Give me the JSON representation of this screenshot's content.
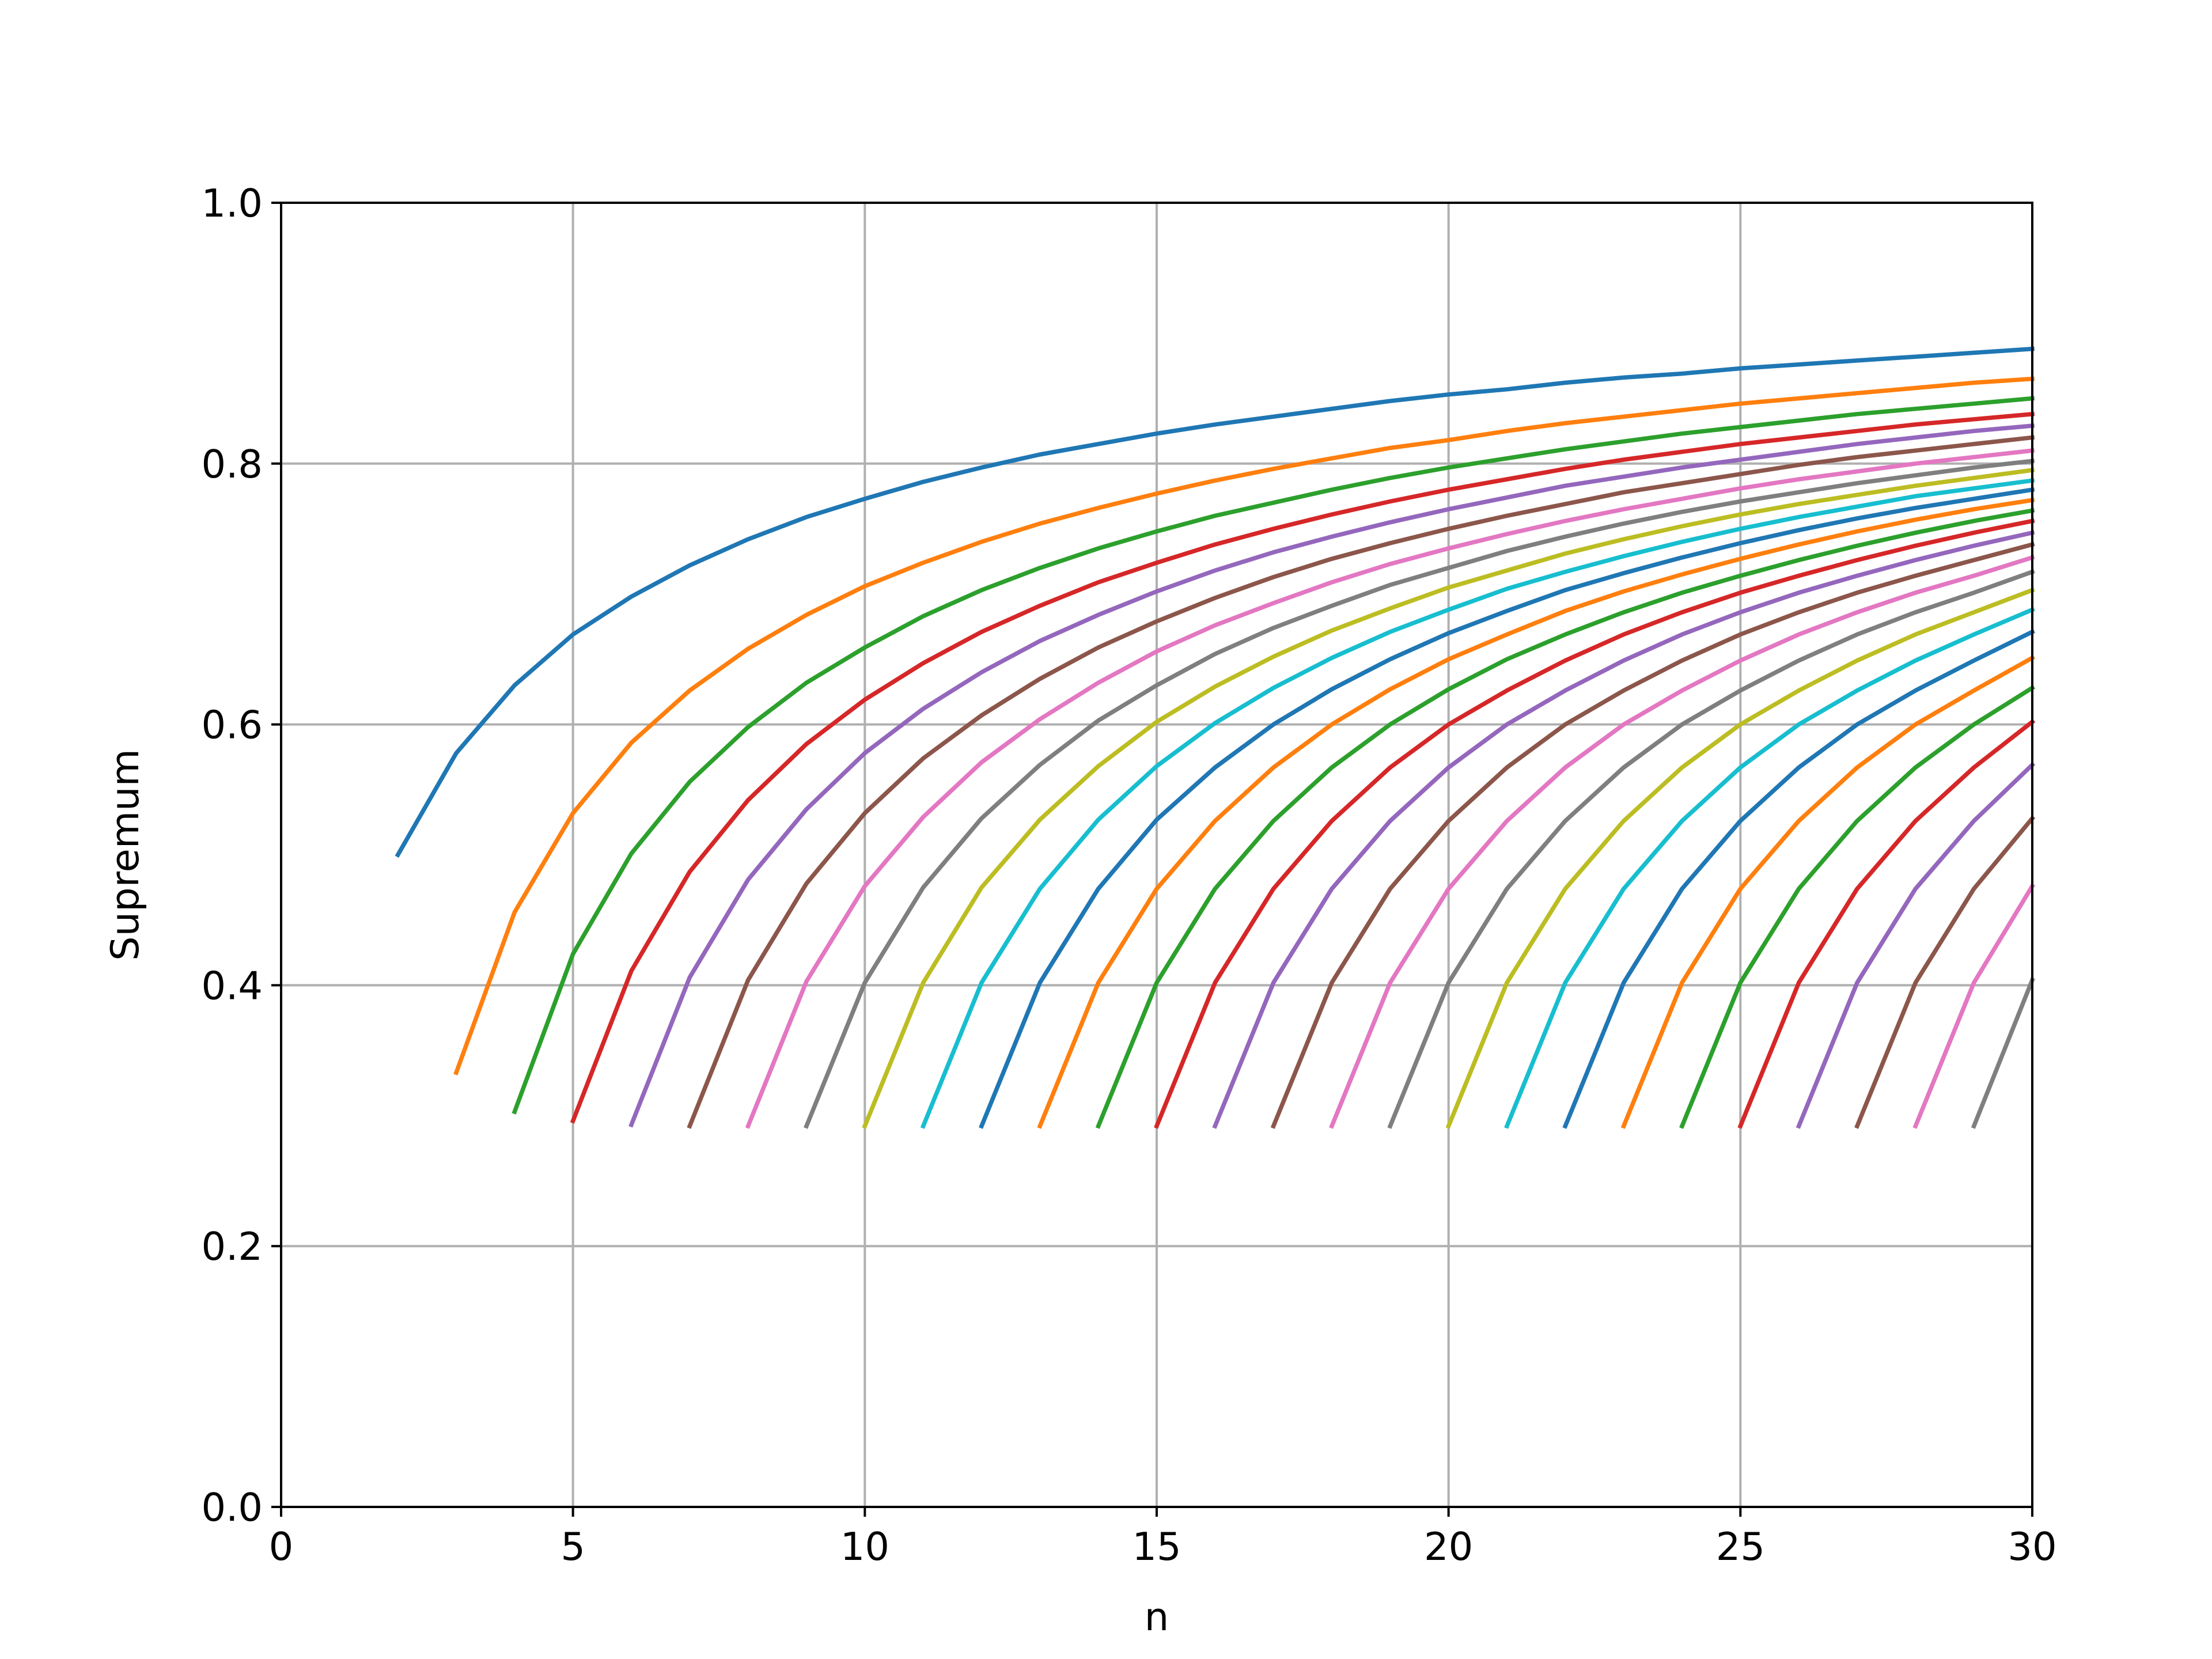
{
  "chart_data": {
    "type": "line",
    "xlabel": "n",
    "ylabel": "Supremum",
    "xlim": [
      0,
      30
    ],
    "ylim": [
      0,
      1
    ],
    "grid": true,
    "x_ticks": [
      0,
      5,
      10,
      15,
      20,
      25,
      30
    ],
    "x_tick_labels": [
      "0",
      "5",
      "10",
      "15",
      "20",
      "25",
      "30"
    ],
    "y_ticks": [
      0,
      0.2,
      0.4,
      0.6,
      0.8,
      1.0
    ],
    "y_tick_labels": [
      "0.0",
      "0.2",
      "0.4",
      "0.6",
      "0.8",
      "1.0"
    ],
    "colors": [
      "#1f77b4",
      "#ff7f0e",
      "#2ca02c",
      "#d62728",
      "#9467bd",
      "#8c564b",
      "#e377c2",
      "#7f7f7f",
      "#bcbd22",
      "#17becf"
    ],
    "series": [
      {
        "x": [
          2,
          3,
          4,
          5,
          6,
          7,
          8,
          9,
          10,
          11,
          12,
          13,
          14,
          15,
          16,
          17,
          18,
          19,
          20,
          21,
          22,
          23,
          24,
          25,
          26,
          27,
          28,
          29,
          30
        ],
        "values": [
          0.5,
          0.578,
          0.63,
          0.669,
          0.698,
          0.722,
          0.742,
          0.759,
          0.773,
          0.786,
          0.797,
          0.807,
          0.815,
          0.823,
          0.83,
          0.836,
          0.842,
          0.848,
          0.853,
          0.857,
          0.862,
          0.866,
          0.869,
          0.873,
          0.876,
          0.879,
          0.882,
          0.885,
          0.888
        ]
      },
      {
        "x": [
          3,
          4,
          5,
          6,
          7,
          8,
          9,
          10,
          11,
          12,
          13,
          14,
          15,
          16,
          17,
          18,
          19,
          20,
          21,
          22,
          23,
          24,
          25,
          26,
          27,
          28,
          29,
          30
        ],
        "values": [
          0.333,
          0.456,
          0.532,
          0.586,
          0.626,
          0.658,
          0.684,
          0.706,
          0.724,
          0.74,
          0.754,
          0.766,
          0.777,
          0.787,
          0.796,
          0.804,
          0.812,
          0.818,
          0.825,
          0.831,
          0.836,
          0.841,
          0.846,
          0.85,
          0.854,
          0.858,
          0.862,
          0.865
        ]
      },
      {
        "x": [
          4,
          5,
          6,
          7,
          8,
          9,
          10,
          11,
          12,
          13,
          14,
          15,
          16,
          17,
          18,
          19,
          20,
          21,
          22,
          23,
          24,
          25,
          26,
          27,
          28,
          29,
          30
        ],
        "values": [
          0.303,
          0.424,
          0.501,
          0.556,
          0.598,
          0.632,
          0.659,
          0.683,
          0.703,
          0.72,
          0.735,
          0.748,
          0.76,
          0.77,
          0.78,
          0.789,
          0.797,
          0.804,
          0.811,
          0.817,
          0.823,
          0.828,
          0.833,
          0.838,
          0.842,
          0.846,
          0.85
        ]
      },
      {
        "x": [
          5,
          6,
          7,
          8,
          9,
          10,
          11,
          12,
          13,
          14,
          15,
          16,
          17,
          18,
          19,
          20,
          21,
          22,
          23,
          24,
          25,
          26,
          27,
          28,
          29,
          30
        ],
        "values": [
          0.296,
          0.411,
          0.487,
          0.542,
          0.585,
          0.619,
          0.647,
          0.671,
          0.691,
          0.709,
          0.724,
          0.738,
          0.75,
          0.761,
          0.771,
          0.78,
          0.788,
          0.796,
          0.803,
          0.809,
          0.815,
          0.82,
          0.825,
          0.83,
          0.834,
          0.838
        ]
      },
      {
        "x": [
          6,
          7,
          8,
          9,
          10,
          11,
          12,
          13,
          14,
          15,
          16,
          17,
          18,
          19,
          20,
          21,
          22,
          23,
          24,
          25,
          26,
          27,
          28,
          29,
          30
        ],
        "values": [
          0.293,
          0.406,
          0.481,
          0.535,
          0.578,
          0.612,
          0.64,
          0.664,
          0.684,
          0.702,
          0.718,
          0.732,
          0.744,
          0.755,
          0.765,
          0.774,
          0.783,
          0.79,
          0.797,
          0.803,
          0.809,
          0.815,
          0.82,
          0.825,
          0.829
        ]
      },
      {
        "x": [
          7,
          8,
          9,
          10,
          11,
          12,
          13,
          14,
          15,
          16,
          17,
          18,
          19,
          20,
          21,
          22,
          23,
          24,
          25,
          26,
          27,
          28,
          29,
          30
        ],
        "values": [
          0.292,
          0.404,
          0.478,
          0.532,
          0.574,
          0.607,
          0.635,
          0.659,
          0.679,
          0.697,
          0.713,
          0.727,
          0.739,
          0.75,
          0.76,
          0.769,
          0.778,
          0.785,
          0.792,
          0.799,
          0.805,
          0.81,
          0.815,
          0.82
        ]
      },
      {
        "x": [
          8,
          9,
          10,
          11,
          12,
          13,
          14,
          15,
          16,
          17,
          18,
          19,
          20,
          21,
          22,
          23,
          24,
          25,
          26,
          27,
          28,
          29,
          30
        ],
        "values": [
          0.292,
          0.403,
          0.476,
          0.529,
          0.571,
          0.604,
          0.632,
          0.656,
          0.676,
          0.693,
          0.709,
          0.723,
          0.735,
          0.746,
          0.756,
          0.765,
          0.773,
          0.781,
          0.788,
          0.794,
          0.8,
          0.805,
          0.81
        ]
      },
      {
        "x": [
          9,
          10,
          11,
          12,
          13,
          14,
          15,
          16,
          17,
          18,
          19,
          20,
          21,
          22,
          23,
          24,
          25,
          26,
          27,
          28,
          29,
          30
        ],
        "values": [
          0.292,
          0.402,
          0.475,
          0.528,
          0.569,
          0.603,
          0.63,
          0.654,
          0.674,
          0.691,
          0.707,
          0.72,
          0.733,
          0.744,
          0.754,
          0.763,
          0.771,
          0.778,
          0.785,
          0.791,
          0.797,
          0.802
        ]
      },
      {
        "x": [
          10,
          11,
          12,
          13,
          14,
          15,
          16,
          17,
          18,
          19,
          20,
          21,
          22,
          23,
          24,
          25,
          26,
          27,
          28,
          29,
          30
        ],
        "values": [
          0.292,
          0.402,
          0.475,
          0.527,
          0.568,
          0.602,
          0.629,
          0.652,
          0.672,
          0.689,
          0.705,
          0.718,
          0.731,
          0.742,
          0.752,
          0.761,
          0.769,
          0.776,
          0.783,
          0.789,
          0.795
        ]
      },
      {
        "x": [
          11,
          12,
          13,
          14,
          15,
          16,
          17,
          18,
          19,
          20,
          21,
          22,
          23,
          24,
          25,
          26,
          27,
          28,
          29,
          30
        ],
        "values": [
          0.292,
          0.402,
          0.474,
          0.527,
          0.568,
          0.601,
          0.628,
          0.651,
          0.671,
          0.688,
          0.704,
          0.717,
          0.729,
          0.74,
          0.75,
          0.759,
          0.767,
          0.775,
          0.781,
          0.787
        ]
      },
      {
        "x": [
          12,
          13,
          14,
          15,
          16,
          17,
          18,
          19,
          20,
          21,
          22,
          23,
          24,
          25,
          26,
          27,
          28,
          29,
          30
        ],
        "values": [
          0.292,
          0.402,
          0.474,
          0.527,
          0.567,
          0.6,
          0.627,
          0.65,
          0.67,
          0.687,
          0.703,
          0.716,
          0.728,
          0.739,
          0.749,
          0.758,
          0.766,
          0.773,
          0.78
        ]
      },
      {
        "x": [
          13,
          14,
          15,
          16,
          17,
          18,
          19,
          20,
          21,
          22,
          23,
          24,
          25,
          26,
          27,
          28,
          29,
          30
        ],
        "values": [
          0.292,
          0.402,
          0.474,
          0.526,
          0.567,
          0.6,
          0.627,
          0.65,
          0.669,
          0.687,
          0.702,
          0.715,
          0.727,
          0.738,
          0.748,
          0.757,
          0.765,
          0.772
        ]
      },
      {
        "x": [
          14,
          15,
          16,
          17,
          18,
          19,
          20,
          21,
          22,
          23,
          24,
          25,
          26,
          27,
          28,
          29,
          30
        ],
        "values": [
          0.292,
          0.402,
          0.474,
          0.526,
          0.567,
          0.6,
          0.627,
          0.65,
          0.669,
          0.686,
          0.701,
          0.714,
          0.726,
          0.737,
          0.747,
          0.756,
          0.764
        ]
      },
      {
        "x": [
          15,
          16,
          17,
          18,
          19,
          20,
          21,
          22,
          23,
          24,
          25,
          26,
          27,
          28,
          29,
          30
        ],
        "values": [
          0.292,
          0.402,
          0.474,
          0.526,
          0.567,
          0.6,
          0.626,
          0.649,
          0.669,
          0.686,
          0.701,
          0.714,
          0.726,
          0.737,
          0.747,
          0.756
        ]
      },
      {
        "x": [
          16,
          17,
          18,
          19,
          20,
          21,
          22,
          23,
          24,
          25,
          26,
          27,
          28,
          29,
          30
        ],
        "values": [
          0.292,
          0.402,
          0.474,
          0.526,
          0.567,
          0.6,
          0.626,
          0.649,
          0.669,
          0.686,
          0.701,
          0.714,
          0.726,
          0.737,
          0.747
        ]
      },
      {
        "x": [
          17,
          18,
          19,
          20,
          21,
          22,
          23,
          24,
          25,
          26,
          27,
          28,
          29,
          30
        ],
        "values": [
          0.292,
          0.402,
          0.474,
          0.526,
          0.567,
          0.6,
          0.626,
          0.649,
          0.669,
          0.686,
          0.701,
          0.714,
          0.726,
          0.738
        ]
      },
      {
        "x": [
          18,
          19,
          20,
          21,
          22,
          23,
          24,
          25,
          26,
          27,
          28,
          29,
          30
        ],
        "values": [
          0.292,
          0.402,
          0.474,
          0.526,
          0.567,
          0.6,
          0.626,
          0.649,
          0.669,
          0.686,
          0.701,
          0.714,
          0.728
        ]
      },
      {
        "x": [
          19,
          20,
          21,
          22,
          23,
          24,
          25,
          26,
          27,
          28,
          29,
          30
        ],
        "values": [
          0.292,
          0.402,
          0.474,
          0.526,
          0.567,
          0.6,
          0.626,
          0.649,
          0.669,
          0.686,
          0.701,
          0.717
        ]
      },
      {
        "x": [
          20,
          21,
          22,
          23,
          24,
          25,
          26,
          27,
          28,
          29,
          30
        ],
        "values": [
          0.292,
          0.402,
          0.474,
          0.526,
          0.567,
          0.6,
          0.626,
          0.649,
          0.669,
          0.686,
          0.703
        ]
      },
      {
        "x": [
          21,
          22,
          23,
          24,
          25,
          26,
          27,
          28,
          29,
          30
        ],
        "values": [
          0.292,
          0.402,
          0.474,
          0.526,
          0.567,
          0.6,
          0.626,
          0.649,
          0.669,
          0.688
        ]
      },
      {
        "x": [
          22,
          23,
          24,
          25,
          26,
          27,
          28,
          29,
          30
        ],
        "values": [
          0.292,
          0.402,
          0.474,
          0.526,
          0.567,
          0.6,
          0.626,
          0.649,
          0.671
        ]
      },
      {
        "x": [
          23,
          24,
          25,
          26,
          27,
          28,
          29,
          30
        ],
        "values": [
          0.292,
          0.402,
          0.474,
          0.526,
          0.567,
          0.6,
          0.626,
          0.651
        ]
      },
      {
        "x": [
          24,
          25,
          26,
          27,
          28,
          29,
          30
        ],
        "values": [
          0.292,
          0.402,
          0.474,
          0.526,
          0.567,
          0.6,
          0.628
        ]
      },
      {
        "x": [
          25,
          26,
          27,
          28,
          29,
          30
        ],
        "values": [
          0.292,
          0.402,
          0.474,
          0.526,
          0.567,
          0.602
        ]
      },
      {
        "x": [
          26,
          27,
          28,
          29,
          30
        ],
        "values": [
          0.292,
          0.402,
          0.474,
          0.526,
          0.569
        ]
      },
      {
        "x": [
          27,
          28,
          29,
          30
        ],
        "values": [
          0.292,
          0.402,
          0.474,
          0.528
        ]
      },
      {
        "x": [
          28,
          29,
          30
        ],
        "values": [
          0.292,
          0.402,
          0.476
        ]
      },
      {
        "x": [
          29,
          30
        ],
        "values": [
          0.292,
          0.404
        ]
      }
    ]
  }
}
